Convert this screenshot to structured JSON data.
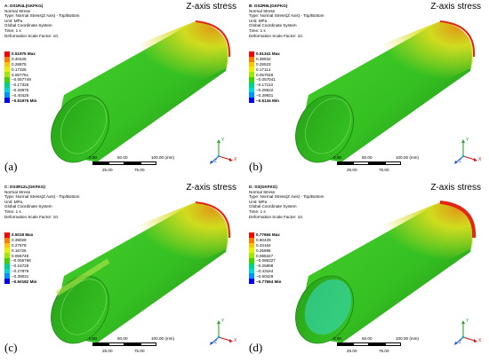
{
  "view_title": "Z-axis stress",
  "colors": {
    "legend": [
      "#ff0000",
      "#ff7a00",
      "#ffc400",
      "#e8f000",
      "#9cea00",
      "#3fd400",
      "#00d28a",
      "#00d7d7",
      "#0093ff",
      "#0000ff"
    ],
    "body": "#35c022",
    "body_dark": "#1f8a12",
    "hot_yellow": "#d8dd1e",
    "hot_orange": "#e89a16",
    "hot_red": "#e32512"
  },
  "panels": [
    {
      "id": "a",
      "label": "(a)",
      "result": "A: DS1R4L(GKFKG)",
      "lines": [
        "Normal Stress",
        "Type: Normal Stress(Z Axis) - Top/Bottom",
        "Unit: MPa",
        "Global Coordinate System",
        "Time: 1 s",
        "Deformation Scale Factor: 10."
      ],
      "legend": [
        "0.51975 Max",
        "0.40425",
        "0.28875",
        "0.17325",
        "0.057751",
        "−0.057749",
        "−0.17325",
        "−0.28875",
        "−0.40425",
        "−0.51975 Min"
      ]
    },
    {
      "id": "b",
      "label": "(b)",
      "result": "B: DS2R8L(GKFKG)",
      "lines": [
        "Normal Stress",
        "Type: Normal Stress(Z Axis) - Top/Bottom",
        "Unit: MPa",
        "Global Coordinate System",
        "Time: 1 s",
        "Deformation Scale Factor: 10."
      ],
      "legend": [
        "0.51341 Max",
        "0.39932",
        "0.28523",
        "0.17114",
        "0.057048",
        "−0.057041",
        "−0.17113",
        "−0.28522",
        "−0.39931",
        "−0.5134 Min"
      ]
    },
    {
      "id": "c",
      "label": "(c)",
      "result": "C: DS3R12L(GKFKG)",
      "lines": [
        "Normal Stress",
        "Type: Normal Stress(Z Axis) - Top/Bottom",
        "Unit: MPa",
        "Global Coordinate System",
        "Time: 1 s",
        "Deformation Scale Factor: 10."
      ],
      "legend": [
        "0.5018 Max",
        "0.39029",
        "0.27878",
        "0.16726",
        "0.055748",
        "−0.055766",
        "−0.16728",
        "−0.27879",
        "−0.39031",
        "−0.50182 Min"
      ]
    },
    {
      "id": "d",
      "label": "(d)",
      "result": "D: SS(GKFKG)",
      "lines": [
        "Normal Stress",
        "Type: Normal Stress(Z Axis) - Top/Bottom",
        "Unit: MPa",
        "Global Coordinate System",
        "Time: 1 s",
        "Deformation Scale Factor: 10."
      ],
      "legend": [
        "0.77694 Max",
        "0.60429",
        "0.43164",
        "0.25898",
        "0.086327",
        "−0.086327",
        "−0.25898",
        "−0.43164",
        "−0.60429",
        "−0.77694 Min"
      ]
    }
  ],
  "scale": {
    "top": [
      "0.00",
      "50.00",
      "100.00 (mm)"
    ],
    "bottom": [
      "25.00",
      "75.00"
    ]
  },
  "triad": {
    "x": "X",
    "y": "Y",
    "z": "Z"
  }
}
